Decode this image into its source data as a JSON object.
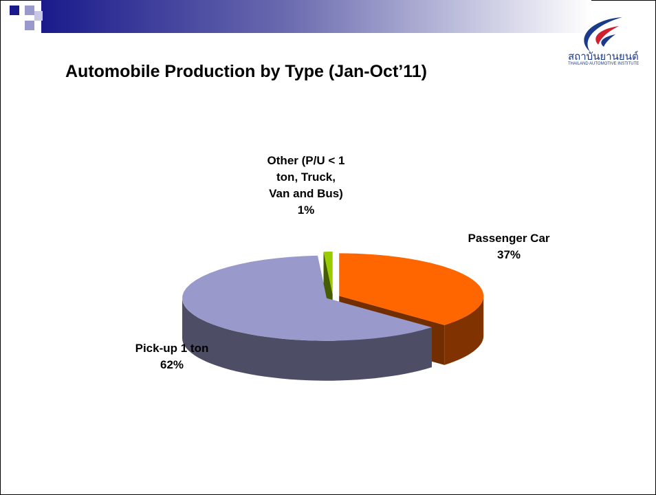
{
  "chart_data": {
    "type": "pie",
    "title": "Automobile Production by Type (Jan-Oct’11)",
    "categories": [
      "Passenger Car",
      "Pick-up 1 ton",
      "Other (P/U < 1 ton, Truck, Van and Bus)"
    ],
    "values": [
      37,
      62,
      1
    ],
    "value_labels": [
      "37%",
      "62%",
      "1%"
    ],
    "colors": [
      "#ff6600",
      "#9999cc",
      "#99cc00"
    ]
  },
  "logo": {
    "thai_name": "สถาบันยานยนต์",
    "english_name": "THAILAND AUTOMOTIVE INSTITUTE"
  }
}
